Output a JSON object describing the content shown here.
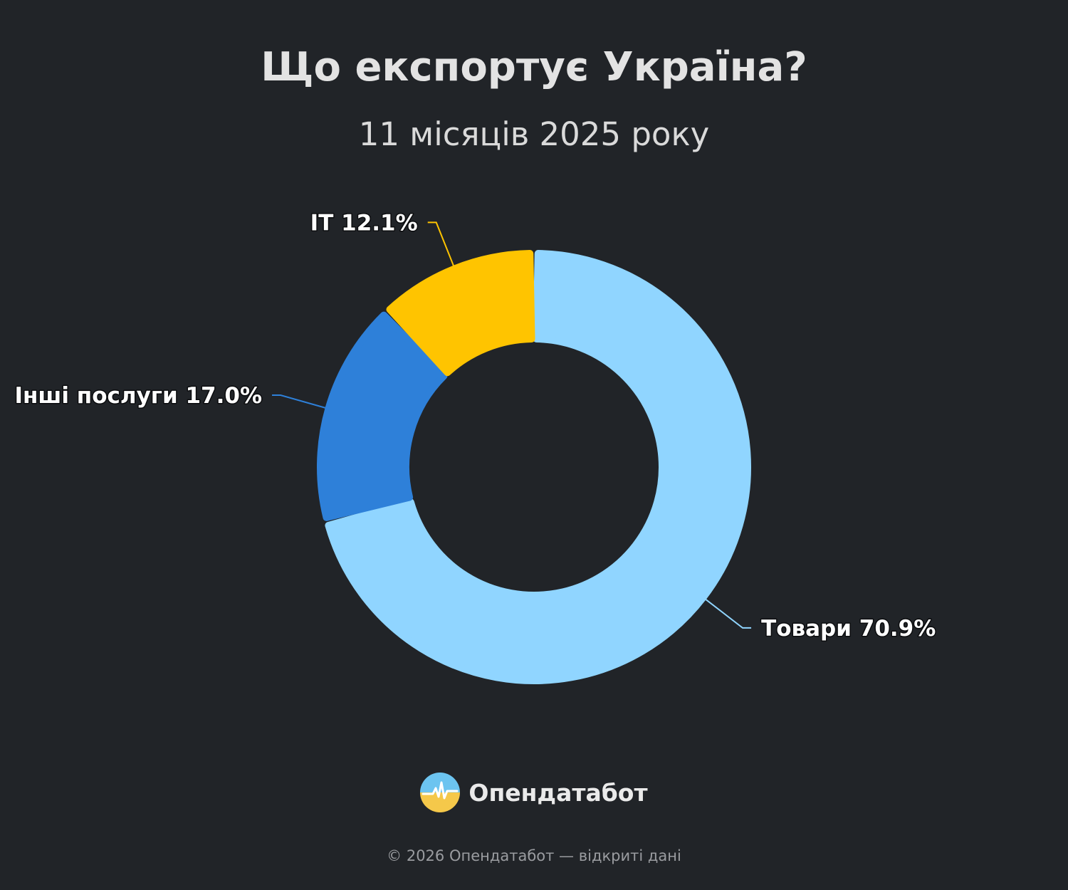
{
  "header": {
    "title": "Що експортує Україна?",
    "subtitle": "11 місяців 2025 року"
  },
  "chart_data": {
    "type": "pie",
    "title": "Що експортує Україна?",
    "subtitle": "11 місяців 2025 року",
    "donut": true,
    "categories": [
      "Товари",
      "Інші послуги",
      "ІТ"
    ],
    "values": [
      70.9,
      17.0,
      12.1
    ],
    "labels": [
      "Товари 70.9%",
      "Інші послуги 17.0%",
      "ІТ 12.1%"
    ],
    "colors": [
      "#90d5ff",
      "#2e80d9",
      "#ffc400"
    ],
    "unit": "%"
  },
  "brand": {
    "name": "Опендатабот",
    "logo_icon": "opendatabot-logo-icon"
  },
  "footer": {
    "text": "© 2026 Опендатабот — відкриті дані"
  }
}
